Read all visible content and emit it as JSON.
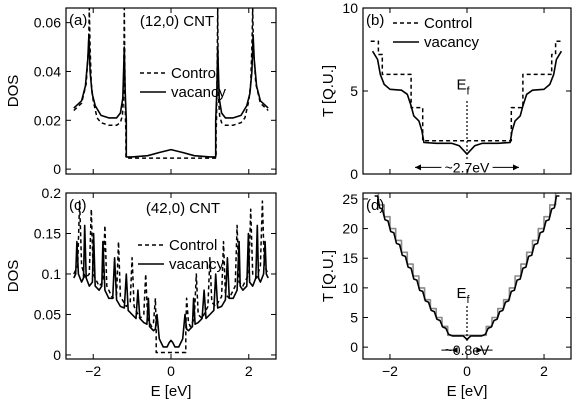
{
  "chart_data": [
    {
      "id": "a",
      "type": "line",
      "panel_label": "(a)",
      "title": "(12,0) CNT",
      "xlabel": "",
      "ylabel": "DOS",
      "xlim": [
        -2.7,
        2.7
      ],
      "ylim": [
        -0.002,
        0.066
      ],
      "xticks": [
        -2,
        0,
        2
      ],
      "xtick_labels": [
        "",
        "",
        ""
      ],
      "yticks": [
        0,
        0.02,
        0.04,
        0.06
      ],
      "ytick_labels": [
        "0",
        "0.02",
        "0.04",
        "0.06"
      ],
      "grid": false,
      "legend": {
        "placement": "center-right",
        "entries": [
          "Control",
          "vacancy"
        ]
      },
      "series": [
        {
          "name": "Control",
          "style": "dashed",
          "x": [
            -2.5,
            -2.3,
            -2.18,
            -2.12,
            -2.1,
            -2.08,
            -2.05,
            -2.0,
            -1.9,
            -1.8,
            -1.6,
            -1.4,
            -1.3,
            -1.25,
            -1.22,
            -1.2,
            -1.18,
            -1.17,
            -1.16,
            -1.16,
            -1.0,
            -0.6,
            0,
            0.6,
            1.0,
            1.16,
            1.16,
            1.17,
            1.18,
            1.2,
            1.22,
            1.25,
            1.3,
            1.4,
            1.6,
            1.8,
            1.9,
            2.0,
            2.05,
            2.08,
            2.1,
            2.12,
            2.18,
            2.3,
            2.5
          ],
          "y": [
            0.024,
            0.027,
            0.035,
            0.05,
            0.066,
            0.05,
            0.035,
            0.028,
            0.021,
            0.019,
            0.018,
            0.018,
            0.019,
            0.022,
            0.03,
            0.066,
            0.03,
            0.02,
            0.015,
            0.0045,
            0.0045,
            0.0045,
            0.0045,
            0.0045,
            0.0045,
            0.0045,
            0.015,
            0.02,
            0.03,
            0.066,
            0.03,
            0.022,
            0.019,
            0.018,
            0.018,
            0.019,
            0.021,
            0.028,
            0.035,
            0.05,
            0.066,
            0.05,
            0.035,
            0.027,
            0.024
          ]
        },
        {
          "name": "vacancy",
          "style": "solid",
          "x": [
            -2.5,
            -2.3,
            -2.2,
            -2.14,
            -2.11,
            -2.08,
            -2.03,
            -1.95,
            -1.8,
            -1.6,
            -1.4,
            -1.3,
            -1.24,
            -1.2,
            -1.18,
            -1.16,
            -1.15,
            -1.15,
            -1.0,
            -0.6,
            -0.3,
            0,
            0.3,
            0.6,
            1.0,
            1.15,
            1.15,
            1.16,
            1.18,
            1.2,
            1.24,
            1.3,
            1.4,
            1.6,
            1.8,
            1.95,
            2.03,
            2.08,
            2.11,
            2.14,
            2.2,
            2.3,
            2.5
          ],
          "y": [
            0.025,
            0.028,
            0.034,
            0.045,
            0.055,
            0.04,
            0.031,
            0.026,
            0.022,
            0.021,
            0.021,
            0.023,
            0.029,
            0.05,
            0.033,
            0.024,
            0.02,
            0.005,
            0.005,
            0.0055,
            0.0068,
            0.008,
            0.0068,
            0.0055,
            0.005,
            0.005,
            0.02,
            0.024,
            0.033,
            0.05,
            0.029,
            0.023,
            0.021,
            0.021,
            0.022,
            0.026,
            0.031,
            0.04,
            0.055,
            0.045,
            0.034,
            0.028,
            0.025
          ]
        }
      ]
    },
    {
      "id": "b",
      "type": "line",
      "panel_label": "(b)",
      "title": "",
      "xlabel": "",
      "ylabel": "T [Q.U.]",
      "xlim": [
        -2.7,
        2.7
      ],
      "ylim": [
        0,
        10
      ],
      "xticks": [
        -2,
        0,
        2
      ],
      "xtick_labels": [
        "",
        "",
        ""
      ],
      "yticks": [
        0,
        5,
        10
      ],
      "ytick_labels": [
        "0",
        "5",
        "10"
      ],
      "grid": false,
      "legend": {
        "placement": "top-center",
        "entries": [
          "Control",
          "vacancy"
        ]
      },
      "annotations": [
        {
          "text": "E",
          "subscript": "f",
          "x": 0,
          "y": 5.1
        },
        {
          "text": "~2.7eV",
          "x": 0,
          "y": 0.4,
          "arrow_from": -1.35,
          "arrow_to": 1.35
        }
      ],
      "fermi_line": {
        "x": 0,
        "y_from": 0.9,
        "y_to": 4.4
      },
      "series": [
        {
          "name": "Control",
          "style": "dashed",
          "x": [
            -2.5,
            -2.3,
            -2.3,
            -2.2,
            -2.2,
            -1.45,
            -1.45,
            -1.15,
            -1.15,
            1.15,
            1.15,
            1.45,
            1.45,
            2.2,
            2.2,
            2.3,
            2.3,
            2.5
          ],
          "y": [
            8,
            8,
            7.2,
            7.2,
            6,
            6,
            4,
            4,
            2,
            2,
            4,
            4,
            6,
            6,
            7.2,
            7.2,
            8,
            8
          ]
        },
        {
          "name": "vacancy",
          "style": "solid",
          "x": [
            -2.45,
            -2.32,
            -2.25,
            -2.15,
            -2.0,
            -1.7,
            -1.55,
            -1.45,
            -1.38,
            -1.25,
            -1.17,
            -1.12,
            -0.8,
            -0.4,
            -0.2,
            0,
            0.2,
            0.4,
            0.8,
            1.12,
            1.17,
            1.25,
            1.38,
            1.45,
            1.55,
            1.7,
            2.0,
            2.15,
            2.25,
            2.32,
            2.45
          ],
          "y": [
            7.4,
            6.9,
            6.0,
            5.4,
            5.1,
            5.05,
            4.8,
            4.1,
            3.5,
            3.2,
            2.6,
            1.9,
            1.85,
            1.85,
            1.7,
            1.2,
            1.7,
            1.85,
            1.85,
            1.9,
            2.6,
            3.2,
            3.5,
            4.1,
            4.8,
            5.05,
            5.1,
            5.4,
            6.0,
            6.9,
            7.4
          ]
        }
      ]
    },
    {
      "id": "c",
      "type": "line",
      "panel_label": "(c)",
      "title": "(42,0) CNT",
      "xlabel": "E [eV]",
      "ylabel": "DOS",
      "xlim": [
        -2.7,
        2.7
      ],
      "ylim": [
        -0.005,
        0.2
      ],
      "xticks": [
        -2,
        0,
        2
      ],
      "xtick_labels": [
        "−2",
        "0",
        "2"
      ],
      "yticks": [
        0,
        0.05,
        0.1,
        0.15,
        0.2
      ],
      "ytick_labels": [
        "0",
        "0.05",
        "0.1",
        "0.15",
        "0.2"
      ],
      "grid": false,
      "legend": {
        "placement": "top-center",
        "entries": [
          "Control",
          "vacancy"
        ]
      },
      "series": [
        {
          "name": "Control",
          "style": "dashed",
          "x": [
            -2.5,
            -2.4,
            -2.35,
            -2.3,
            -2.2,
            -2.1,
            -2.05,
            -2.0,
            -1.85,
            -1.75,
            -1.7,
            -1.65,
            -1.5,
            -1.4,
            -1.35,
            -1.3,
            -1.15,
            -1.05,
            -1.0,
            -0.95,
            -0.8,
            -0.7,
            -0.65,
            -0.6,
            -0.5,
            -0.45,
            -0.4,
            -0.38,
            -0.38,
            0.38,
            0.38,
            0.4,
            0.45,
            0.5,
            0.6,
            0.65,
            0.7,
            0.8,
            0.95,
            1.0,
            1.05,
            1.15,
            1.3,
            1.35,
            1.4,
            1.5,
            1.65,
            1.7,
            1.75,
            1.85,
            2.0,
            2.05,
            2.1,
            2.2,
            2.3,
            2.35,
            2.4,
            2.5
          ],
          "y": [
            0.1,
            0.11,
            0.19,
            0.11,
            0.095,
            0.1,
            0.18,
            0.1,
            0.085,
            0.09,
            0.16,
            0.085,
            0.07,
            0.075,
            0.14,
            0.072,
            0.06,
            0.065,
            0.12,
            0.06,
            0.045,
            0.05,
            0.1,
            0.045,
            0.035,
            0.04,
            0.07,
            0.03,
            0.003,
            0.003,
            0.03,
            0.07,
            0.04,
            0.035,
            0.045,
            0.1,
            0.05,
            0.045,
            0.06,
            0.12,
            0.065,
            0.06,
            0.072,
            0.14,
            0.075,
            0.07,
            0.085,
            0.16,
            0.09,
            0.085,
            0.1,
            0.18,
            0.1,
            0.095,
            0.11,
            0.19,
            0.11,
            0.1
          ]
        },
        {
          "name": "vacancy",
          "style": "solid",
          "x": [
            -2.5,
            -2.45,
            -2.42,
            -2.38,
            -2.3,
            -2.25,
            -2.22,
            -2.18,
            -2.1,
            -2.02,
            -1.99,
            -1.95,
            -1.85,
            -1.78,
            -1.75,
            -1.7,
            -1.6,
            -1.5,
            -1.45,
            -1.4,
            -1.3,
            -1.2,
            -1.15,
            -1.1,
            -1.0,
            -0.9,
            -0.85,
            -0.8,
            -0.7,
            -0.62,
            -0.58,
            -0.55,
            -0.45,
            -0.4,
            -0.36,
            -0.3,
            -0.2,
            -0.1,
            -0.05,
            0,
            0.05,
            0.1,
            0.2,
            0.3,
            0.36,
            0.4,
            0.45,
            0.55,
            0.58,
            0.62,
            0.7,
            0.8,
            0.85,
            0.9,
            1.0,
            1.1,
            1.15,
            1.2,
            1.3,
            1.4,
            1.45,
            1.5,
            1.6,
            1.7,
            1.75,
            1.78,
            1.85,
            1.95,
            1.99,
            2.02,
            2.1,
            2.18,
            2.22,
            2.25,
            2.3,
            2.38,
            2.42,
            2.45,
            2.5
          ],
          "y": [
            0.095,
            0.1,
            0.14,
            0.1,
            0.09,
            0.095,
            0.16,
            0.095,
            0.085,
            0.09,
            0.15,
            0.085,
            0.08,
            0.085,
            0.14,
            0.08,
            0.07,
            0.07,
            0.12,
            0.068,
            0.06,
            0.058,
            0.1,
            0.055,
            0.05,
            0.045,
            0.08,
            0.045,
            0.04,
            0.038,
            0.07,
            0.035,
            0.03,
            0.032,
            0.05,
            0.02,
            0.01,
            0.01,
            0.015,
            0.018,
            0.015,
            0.01,
            0.01,
            0.02,
            0.05,
            0.032,
            0.03,
            0.035,
            0.07,
            0.038,
            0.04,
            0.045,
            0.08,
            0.045,
            0.05,
            0.055,
            0.1,
            0.058,
            0.06,
            0.068,
            0.12,
            0.07,
            0.07,
            0.08,
            0.14,
            0.085,
            0.08,
            0.085,
            0.15,
            0.09,
            0.085,
            0.095,
            0.16,
            0.095,
            0.09,
            0.1,
            0.14,
            0.1,
            0.095
          ]
        }
      ]
    },
    {
      "id": "d",
      "type": "line",
      "panel_label": "(d)",
      "title": "",
      "xlabel": "E [eV]",
      "ylabel": "T [Q.U.]",
      "xlim": [
        -2.7,
        2.7
      ],
      "ylim": [
        -2,
        26
      ],
      "xticks": [
        -2,
        0,
        2
      ],
      "xtick_labels": [
        "−2",
        "0",
        "2"
      ],
      "yticks": [
        0,
        5,
        10,
        15,
        20,
        25
      ],
      "ytick_labels": [
        "0",
        "5",
        "10",
        "15",
        "20",
        "25"
      ],
      "grid": false,
      "legend": null,
      "annotations": [
        {
          "text": "E",
          "subscript": "f",
          "x": 0,
          "y": 8.3
        },
        {
          "text": "~0.8eV",
          "x": 0,
          "y": -0.5,
          "arrow_from": -0.4,
          "arrow_to": 0.4
        }
      ],
      "fermi_line": {
        "x": 0,
        "y_from": 1.2,
        "y_to": 7.0
      },
      "series": [
        {
          "name": "Control",
          "style": "solid-gray",
          "x": [
            -2.4,
            -2.3,
            -2.3,
            -2.15,
            -2.15,
            -2.0,
            -2.0,
            -1.85,
            -1.85,
            -1.7,
            -1.7,
            -1.55,
            -1.55,
            -1.4,
            -1.4,
            -1.25,
            -1.25,
            -1.1,
            -1.1,
            -0.95,
            -0.95,
            -0.8,
            -0.8,
            -0.65,
            -0.65,
            -0.5,
            -0.5,
            -0.4,
            -0.4,
            0.4,
            0.4,
            0.5,
            0.5,
            0.65,
            0.65,
            0.8,
            0.8,
            0.95,
            0.95,
            1.1,
            1.1,
            1.25,
            1.25,
            1.4,
            1.4,
            1.55,
            1.55,
            1.7,
            1.7,
            1.85,
            1.85,
            2.0,
            2.0,
            2.15,
            2.15,
            2.3,
            2.3,
            2.4
          ],
          "y": [
            26,
            26,
            24,
            24,
            22,
            22,
            20,
            20,
            18,
            18,
            16,
            16,
            14,
            14,
            12,
            12,
            10,
            10,
            8,
            8,
            6.5,
            6.5,
            5,
            5,
            3.5,
            3.5,
            2,
            2,
            2,
            2,
            2,
            2,
            3.5,
            3.5,
            5,
            5,
            6.5,
            6.5,
            8,
            8,
            10,
            10,
            12,
            12,
            14,
            14,
            16,
            16,
            18,
            18,
            20,
            20,
            22,
            22,
            24,
            24,
            26,
            26
          ]
        },
        {
          "name": "vacancy",
          "style": "solid",
          "x": [
            -2.4,
            -2.32,
            -2.27,
            -2.2,
            -2.13,
            -2.05,
            -1.98,
            -1.9,
            -1.83,
            -1.75,
            -1.68,
            -1.6,
            -1.53,
            -1.45,
            -1.38,
            -1.3,
            -1.23,
            -1.15,
            -1.08,
            -1.0,
            -0.93,
            -0.85,
            -0.78,
            -0.7,
            -0.63,
            -0.55,
            -0.48,
            -0.42,
            -0.38,
            -0.1,
            -0.03,
            0,
            0.03,
            0.1,
            0.38,
            0.42,
            0.48,
            0.55,
            0.63,
            0.7,
            0.78,
            0.85,
            0.93,
            1.0,
            1.08,
            1.15,
            1.23,
            1.3,
            1.38,
            1.45,
            1.53,
            1.6,
            1.68,
            1.75,
            1.83,
            1.9,
            1.98,
            2.05,
            2.13,
            2.2,
            2.27,
            2.32,
            2.4
          ],
          "y": [
            25.5,
            25.5,
            23.5,
            23.3,
            21.5,
            21.3,
            19.5,
            19.3,
            17.5,
            17.3,
            15.5,
            15.3,
            13.5,
            13.3,
            11.5,
            11.3,
            9.6,
            9.4,
            7.8,
            7.6,
            6.2,
            6.0,
            4.7,
            4.5,
            3.4,
            3.2,
            2.2,
            2.0,
            1.9,
            1.9,
            1.5,
            1.2,
            1.5,
            1.9,
            1.9,
            2.0,
            2.2,
            3.2,
            3.4,
            4.5,
            4.7,
            6.0,
            6.2,
            7.6,
            7.8,
            9.4,
            9.6,
            11.3,
            11.5,
            13.3,
            13.5,
            15.3,
            15.5,
            17.3,
            17.5,
            19.3,
            19.5,
            21.3,
            21.5,
            23.3,
            23.5,
            25.5,
            25.5
          ]
        }
      ]
    }
  ]
}
